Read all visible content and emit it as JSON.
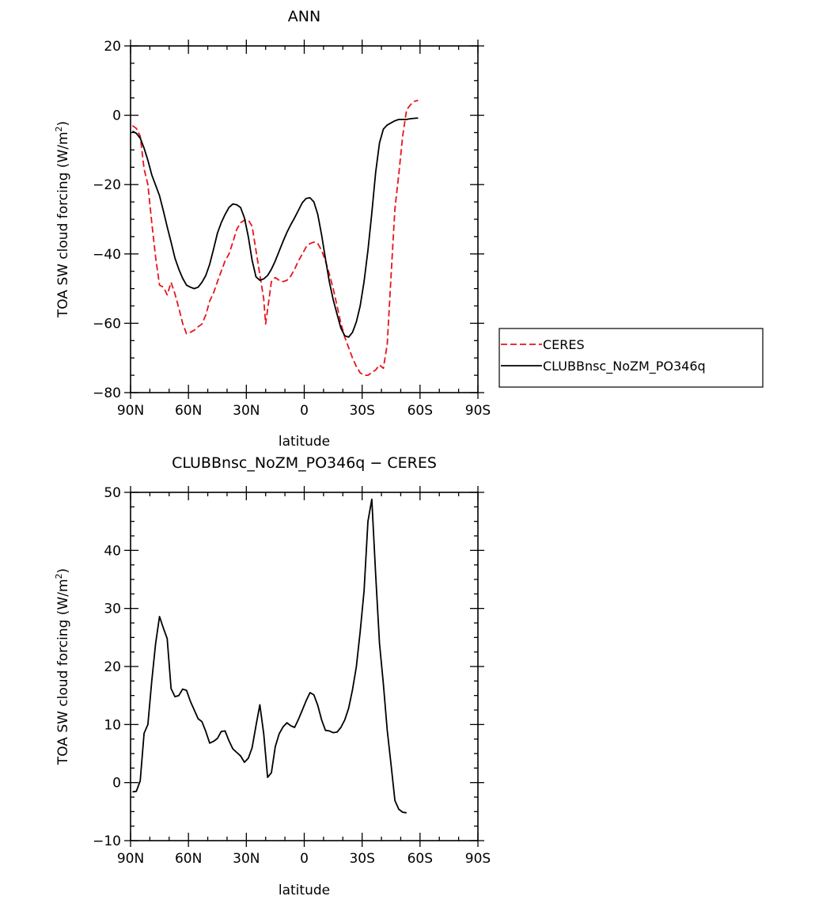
{
  "chart_data": [
    {
      "type": "line",
      "title": "ANN",
      "xlabel": "latitude",
      "ylabel": "TOA SW cloud forcing (W/m",
      "ylabel_sup": "2",
      "ylabel_end": ")",
      "xlim": [
        90,
        -90
      ],
      "ylim": [
        -80,
        20
      ],
      "yticks": [
        20,
        0,
        -20,
        -40,
        -60,
        -80
      ],
      "yticklabels": [
        "20",
        "0",
        "−20",
        "−40",
        "−60",
        "−80"
      ],
      "xticks": [
        90,
        60,
        30,
        0,
        -30,
        -60,
        -90
      ],
      "xticklabels": [
        "90N",
        "60N",
        "30N",
        "0",
        "30S",
        "60S",
        "90S"
      ],
      "grid": false,
      "legend": "right",
      "series": [
        {
          "name": "CERES",
          "color": "#e8141c",
          "dash": "dashed",
          "points": [
            [
              89,
              -3
            ],
            [
              87,
              -3.8
            ],
            [
              85,
              -6
            ],
            [
              83,
              -15.5
            ],
            [
              81,
              -20
            ],
            [
              79,
              -31
            ],
            [
              77,
              -41
            ],
            [
              75,
              -49
            ],
            [
              73,
              -49.6
            ],
            [
              71,
              -51.8
            ],
            [
              69,
              -48.2
            ],
            [
              67,
              -51.5
            ],
            [
              65,
              -55.6
            ],
            [
              63,
              -60
            ],
            [
              61,
              -63
            ],
            [
              59,
              -62.6
            ],
            [
              57,
              -62
            ],
            [
              55,
              -61
            ],
            [
              53,
              -60.2
            ],
            [
              51,
              -57.6
            ],
            [
              49,
              -53.6
            ],
            [
              47,
              -51.2
            ],
            [
              45,
              -48
            ],
            [
              43,
              -45
            ],
            [
              41,
              -42
            ],
            [
              39,
              -40
            ],
            [
              37,
              -36.6
            ],
            [
              35,
              -33
            ],
            [
              33,
              -31
            ],
            [
              31,
              -30.3
            ],
            [
              29,
              -30.2
            ],
            [
              27,
              -32
            ],
            [
              25,
              -39
            ],
            [
              23,
              -46
            ],
            [
              21,
              -53
            ],
            [
              20,
              -60.2
            ],
            [
              19,
              -56
            ],
            [
              17,
              -48
            ],
            [
              15,
              -46.8
            ],
            [
              13,
              -47.6
            ],
            [
              11,
              -48
            ],
            [
              9,
              -47.6
            ],
            [
              7,
              -46.4
            ],
            [
              5,
              -44.4
            ],
            [
              3,
              -42
            ],
            [
              1,
              -40
            ],
            [
              -1,
              -38
            ],
            [
              -3,
              -37
            ],
            [
              -5,
              -36.6
            ],
            [
              -7,
              -37
            ],
            [
              -9,
              -39
            ],
            [
              -11,
              -42
            ],
            [
              -13,
              -45.8
            ],
            [
              -15,
              -50
            ],
            [
              -17,
              -55
            ],
            [
              -19,
              -60
            ],
            [
              -21,
              -64
            ],
            [
              -23,
              -67
            ],
            [
              -25,
              -70
            ],
            [
              -27,
              -72.5
            ],
            [
              -29,
              -74.3
            ],
            [
              -31,
              -75
            ],
            [
              -33,
              -75
            ],
            [
              -35,
              -74.2
            ],
            [
              -37,
              -73.5
            ],
            [
              -39,
              -72
            ],
            [
              -41,
              -73
            ],
            [
              -43,
              -66
            ],
            [
              -45,
              -46
            ],
            [
              -47,
              -27
            ],
            [
              -49,
              -17
            ],
            [
              -51,
              -6
            ],
            [
              -53,
              1.5
            ],
            [
              -55,
              3
            ],
            [
              -57,
              4
            ],
            [
              -59,
              4.3
            ]
          ]
        },
        {
          "name": "CLUBBnsc_NoZM_PO346q",
          "color": "#000000",
          "dash": "solid",
          "points": [
            [
              89,
              -4.6
            ],
            [
              87,
              -5.2
            ],
            [
              85,
              -6.6
            ],
            [
              83,
              -9.5
            ],
            [
              81,
              -13
            ],
            [
              79,
              -17.2
            ],
            [
              77,
              -20.2
            ],
            [
              75,
              -23.2
            ],
            [
              73,
              -27.6
            ],
            [
              71,
              -32.2
            ],
            [
              69,
              -36.6
            ],
            [
              67,
              -41.2
            ],
            [
              65,
              -44.4
            ],
            [
              63,
              -47
            ],
            [
              61,
              -49
            ],
            [
              59,
              -49.6
            ],
            [
              57,
              -50
            ],
            [
              55,
              -49.6
            ],
            [
              53,
              -48.2
            ],
            [
              51,
              -46.2
            ],
            [
              49,
              -43
            ],
            [
              47,
              -38.6
            ],
            [
              45,
              -34
            ],
            [
              43,
              -31
            ],
            [
              41,
              -28.6
            ],
            [
              39,
              -26.6
            ],
            [
              37,
              -25.6
            ],
            [
              35,
              -25.8
            ],
            [
              33,
              -26.6
            ],
            [
              31,
              -29.6
            ],
            [
              29,
              -35
            ],
            [
              27,
              -41.8
            ],
            [
              25,
              -46.6
            ],
            [
              23,
              -47.6
            ],
            [
              21,
              -47.2
            ],
            [
              19,
              -46.2
            ],
            [
              17,
              -44.4
            ],
            [
              15,
              -42
            ],
            [
              13,
              -39.2
            ],
            [
              11,
              -36.4
            ],
            [
              9,
              -33.8
            ],
            [
              7,
              -31.6
            ],
            [
              5,
              -29.6
            ],
            [
              3,
              -27.4
            ],
            [
              1,
              -25.2
            ],
            [
              -1,
              -24
            ],
            [
              -3,
              -23.8
            ],
            [
              -5,
              -25
            ],
            [
              -7,
              -28.6
            ],
            [
              -9,
              -34.6
            ],
            [
              -11,
              -41.4
            ],
            [
              -13,
              -48
            ],
            [
              -15,
              -53.2
            ],
            [
              -17,
              -57.4
            ],
            [
              -19,
              -61.4
            ],
            [
              -21,
              -63.6
            ],
            [
              -23,
              -64
            ],
            [
              -25,
              -62.6
            ],
            [
              -27,
              -59.6
            ],
            [
              -29,
              -55
            ],
            [
              -31,
              -48
            ],
            [
              -33,
              -39
            ],
            [
              -35,
              -28.2
            ],
            [
              -37,
              -16.6
            ],
            [
              -39,
              -8
            ],
            [
              -41,
              -4
            ],
            [
              -43,
              -2.8
            ],
            [
              -45,
              -2.2
            ],
            [
              -47,
              -1.6
            ],
            [
              -49,
              -1.2
            ],
            [
              -51,
              -1.2
            ],
            [
              -53,
              -1.2
            ],
            [
              -55,
              -1
            ],
            [
              -57,
              -0.9
            ],
            [
              -59,
              -0.8
            ]
          ]
        }
      ]
    },
    {
      "type": "line",
      "title": "CLUBBnsc_NoZM_PO346q − CERES",
      "xlabel": "latitude",
      "ylabel": "TOA SW cloud forcing (W/m",
      "ylabel_sup": "2",
      "ylabel_end": ")",
      "xlim": [
        90,
        -90
      ],
      "ylim": [
        -10,
        50
      ],
      "yticks": [
        50,
        40,
        30,
        20,
        10,
        0,
        -10
      ],
      "yticklabels": [
        "50",
        "40",
        "30",
        "20",
        "10",
        "0",
        "−10"
      ],
      "xticks": [
        90,
        60,
        30,
        0,
        -30,
        -60,
        -90
      ],
      "xticklabels": [
        "90N",
        "60N",
        "30N",
        "0",
        "30S",
        "60S",
        "90S"
      ],
      "grid": false,
      "series": [
        {
          "color": "#000000",
          "dash": "solid",
          "points": [
            [
              89,
              -1.6
            ],
            [
              87,
              -1.5
            ],
            [
              85,
              0.3
            ],
            [
              83,
              8.5
            ],
            [
              81,
              10
            ],
            [
              79,
              17.5
            ],
            [
              77,
              24
            ],
            [
              75,
              28.6
            ],
            [
              73,
              26.6
            ],
            [
              71,
              24.8
            ],
            [
              69,
              16.2
            ],
            [
              67,
              14.8
            ],
            [
              65,
              15
            ],
            [
              63,
              16.1
            ],
            [
              61,
              15.9
            ],
            [
              59,
              14
            ],
            [
              57,
              12.5
            ],
            [
              55,
              11
            ],
            [
              53,
              10.5
            ],
            [
              51,
              8.8
            ],
            [
              49,
              6.8
            ],
            [
              47,
              7.1
            ],
            [
              45,
              7.6
            ],
            [
              43,
              8.8
            ],
            [
              41,
              8.9
            ],
            [
              39,
              7.2
            ],
            [
              37,
              5.8
            ],
            [
              35,
              5.2
            ],
            [
              33,
              4.6
            ],
            [
              31,
              3.5
            ],
            [
              29,
              4.2
            ],
            [
              27,
              6
            ],
            [
              25,
              9.8
            ],
            [
              23,
              13.4
            ],
            [
              21,
              8.4
            ],
            [
              19,
              0.9
            ],
            [
              17,
              1.7
            ],
            [
              15,
              6.2
            ],
            [
              13,
              8.4
            ],
            [
              11,
              9.6
            ],
            [
              9,
              10.3
            ],
            [
              7,
              9.8
            ],
            [
              5,
              9.5
            ],
            [
              3,
              10.9
            ],
            [
              1,
              12.5
            ],
            [
              -1,
              14.1
            ],
            [
              -3,
              15.5
            ],
            [
              -5,
              15.1
            ],
            [
              -7,
              13.3
            ],
            [
              -9,
              10.8
            ],
            [
              -11,
              9
            ],
            [
              -13,
              8.9
            ],
            [
              -15,
              8.6
            ],
            [
              -17,
              8.7
            ],
            [
              -19,
              9.5
            ],
            [
              -21,
              10.8
            ],
            [
              -23,
              12.8
            ],
            [
              -25,
              16
            ],
            [
              -27,
              20
            ],
            [
              -29,
              26
            ],
            [
              -31,
              33
            ],
            [
              -33,
              45
            ],
            [
              -35,
              48.8
            ],
            [
              -37,
              36
            ],
            [
              -39,
              24
            ],
            [
              -41,
              17
            ],
            [
              -43,
              9
            ],
            [
              -45,
              3
            ],
            [
              -47,
              -3.1
            ],
            [
              -49,
              -4.6
            ],
            [
              -51,
              -5.1
            ],
            [
              -53,
              -5.2
            ]
          ]
        }
      ]
    }
  ]
}
